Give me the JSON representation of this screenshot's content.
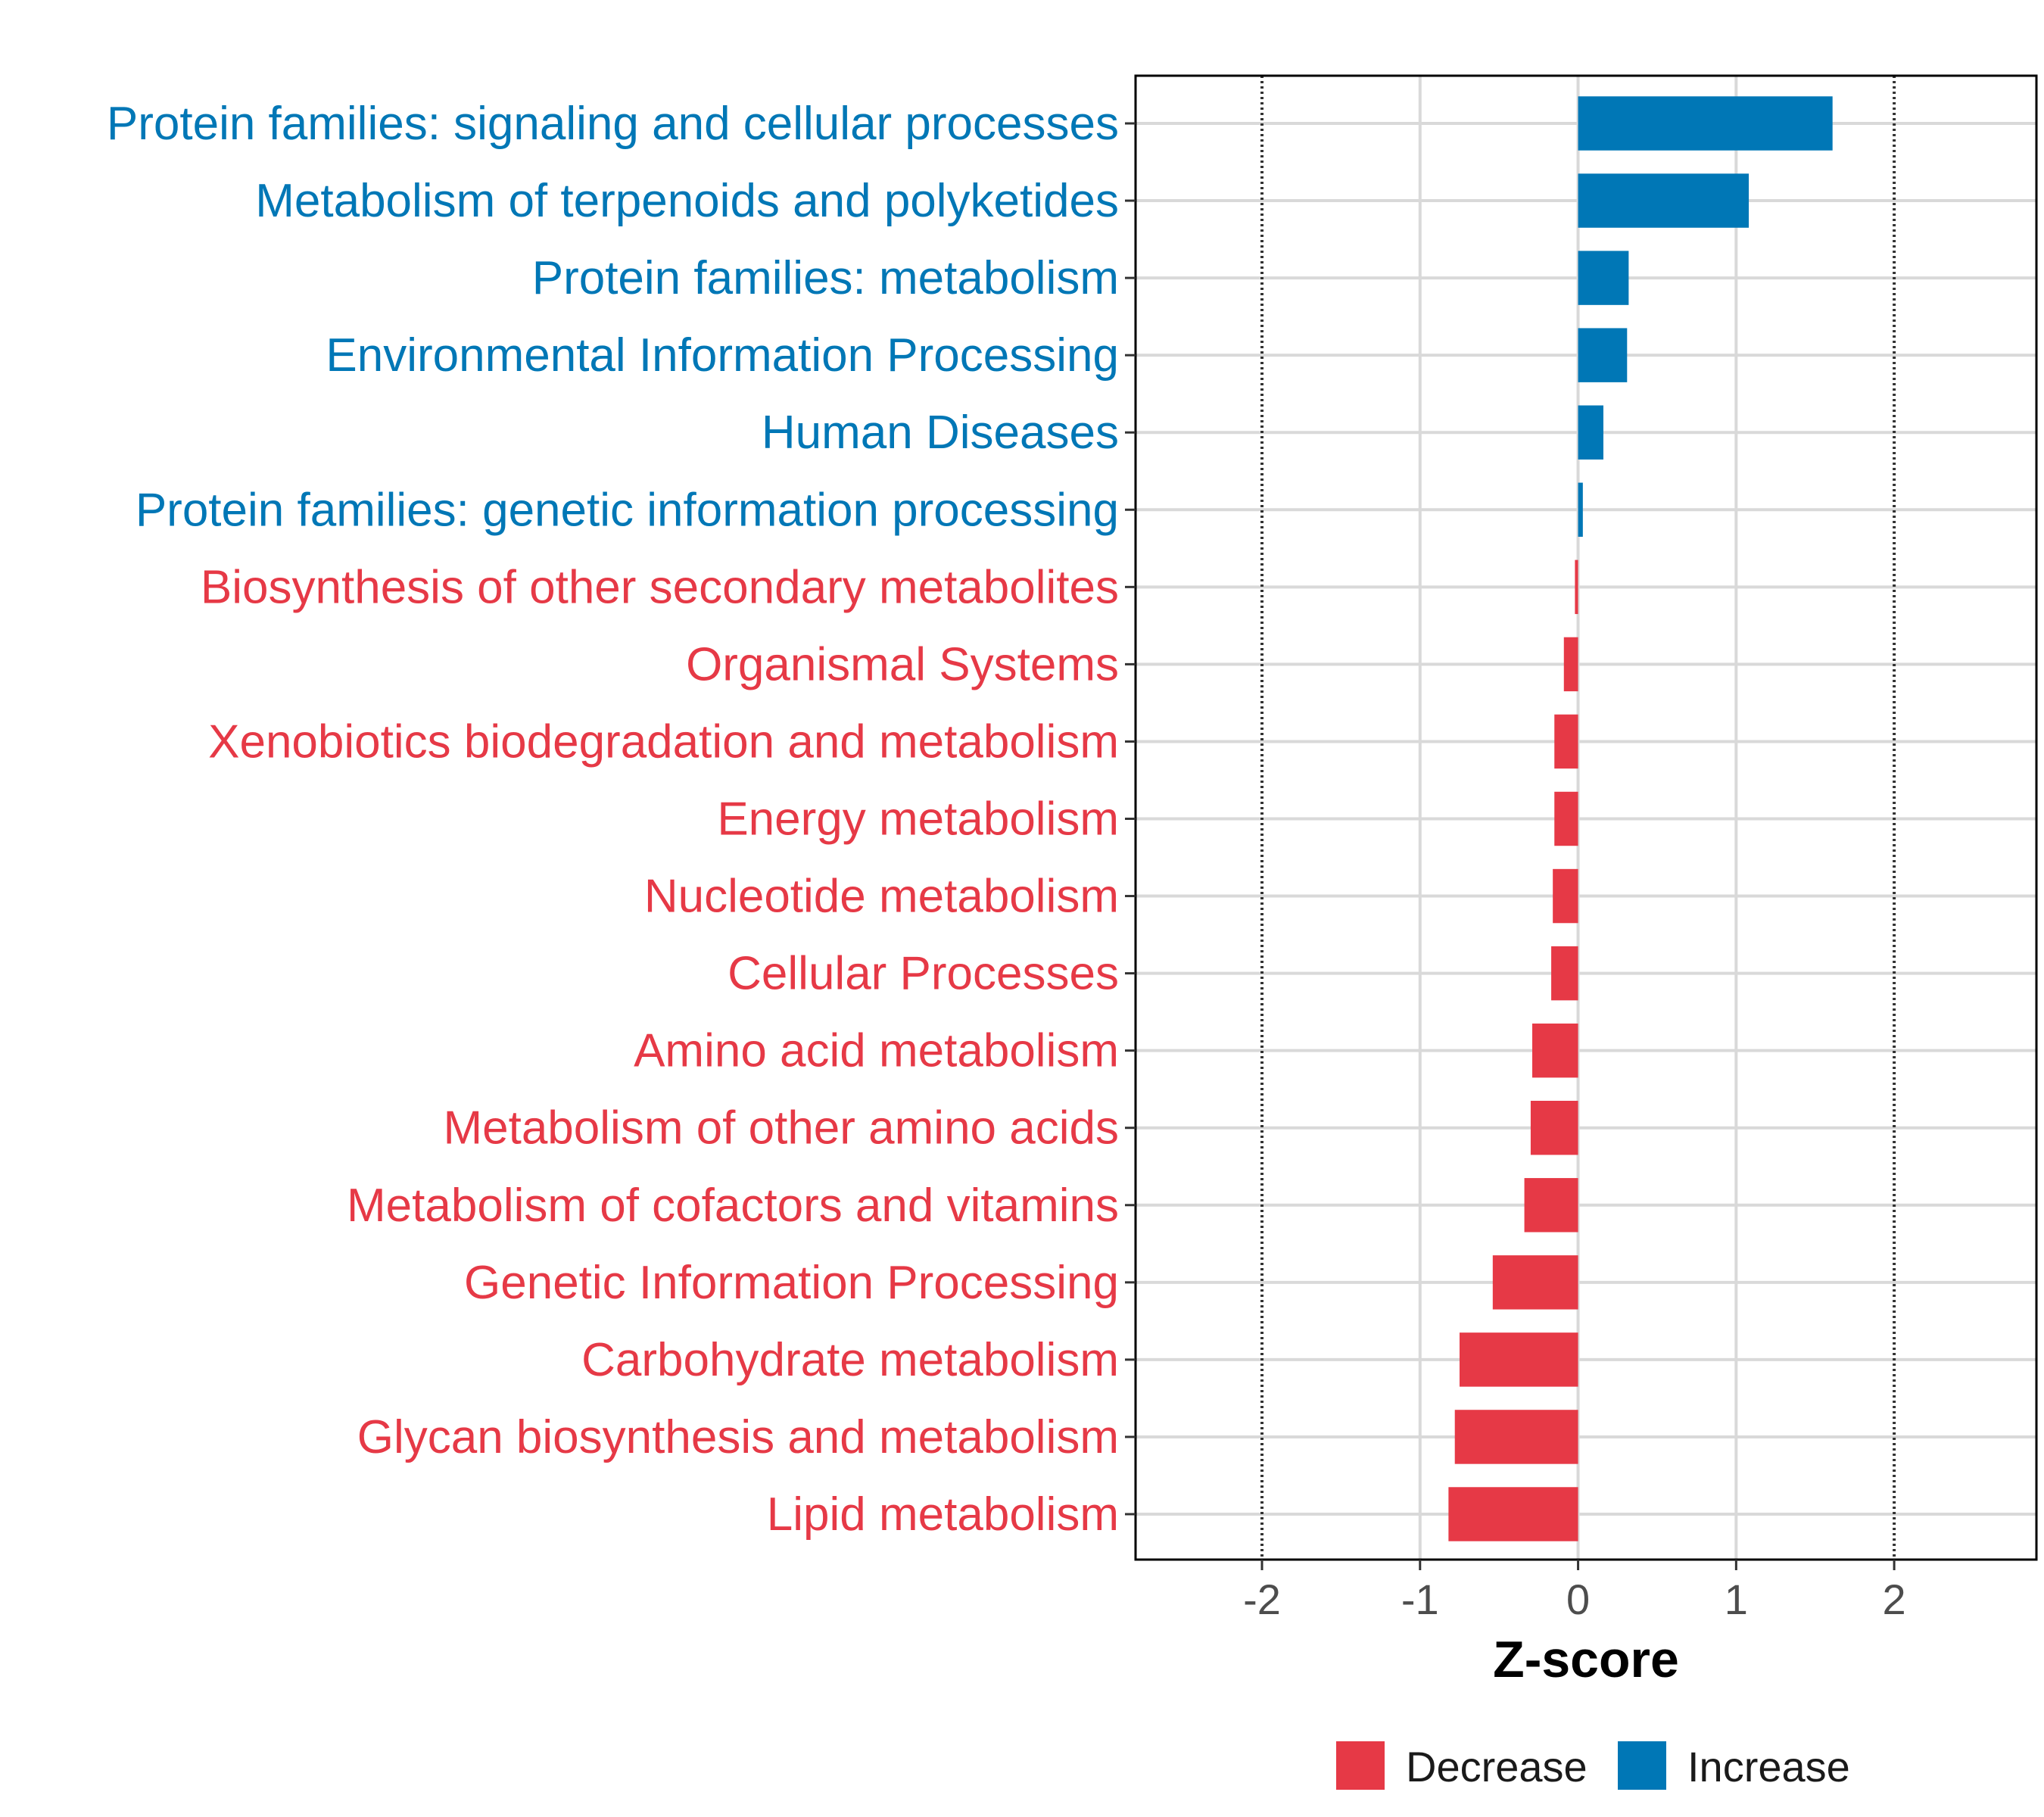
{
  "colors": {
    "decrease": "#E63946",
    "increase": "#0077B6"
  },
  "chart_data": {
    "type": "bar",
    "orientation": "horizontal",
    "xlabel": "Z-score",
    "xlim": [
      -2.8,
      2.9
    ],
    "xticks": [
      -2,
      -1,
      0,
      1,
      2
    ],
    "xtick_labels": [
      "-2",
      "-1",
      "0",
      "1",
      "2"
    ],
    "reference_lines": [
      -2,
      2
    ],
    "grid": true,
    "categories": [
      "Protein families: signaling and cellular processes",
      "Metabolism of terpenoids and polyketides",
      "Protein families: metabolism",
      "Environmental Information Processing",
      "Human Diseases",
      "Protein families: genetic information processing",
      "Biosynthesis of other secondary metabolites",
      "Organismal Systems",
      "Xenobiotics biodegradation and metabolism",
      "Energy metabolism",
      "Nucleotide metabolism",
      "Cellular Processes",
      "Amino acid metabolism",
      "Metabolism of other amino acids",
      "Metabolism of cofactors and vitamins",
      "Genetic Information Processing",
      "Carbohydrate metabolism",
      "Glycan biosynthesis and metabolism",
      "Lipid metabolism"
    ],
    "values": [
      1.61,
      1.08,
      0.32,
      0.31,
      0.16,
      0.03,
      -0.02,
      -0.09,
      -0.15,
      -0.15,
      -0.16,
      -0.17,
      -0.29,
      -0.3,
      -0.34,
      -0.54,
      -0.75,
      -0.78,
      -0.82
    ],
    "groups": [
      "Increase",
      "Increase",
      "Increase",
      "Increase",
      "Increase",
      "Increase",
      "Decrease",
      "Decrease",
      "Decrease",
      "Decrease",
      "Decrease",
      "Decrease",
      "Decrease",
      "Decrease",
      "Decrease",
      "Decrease",
      "Decrease",
      "Decrease",
      "Decrease"
    ],
    "legend": {
      "position": "bottom",
      "entries": [
        {
          "label": "Decrease",
          "color": "#E63946"
        },
        {
          "label": "Increase",
          "color": "#0077B6"
        }
      ]
    }
  }
}
